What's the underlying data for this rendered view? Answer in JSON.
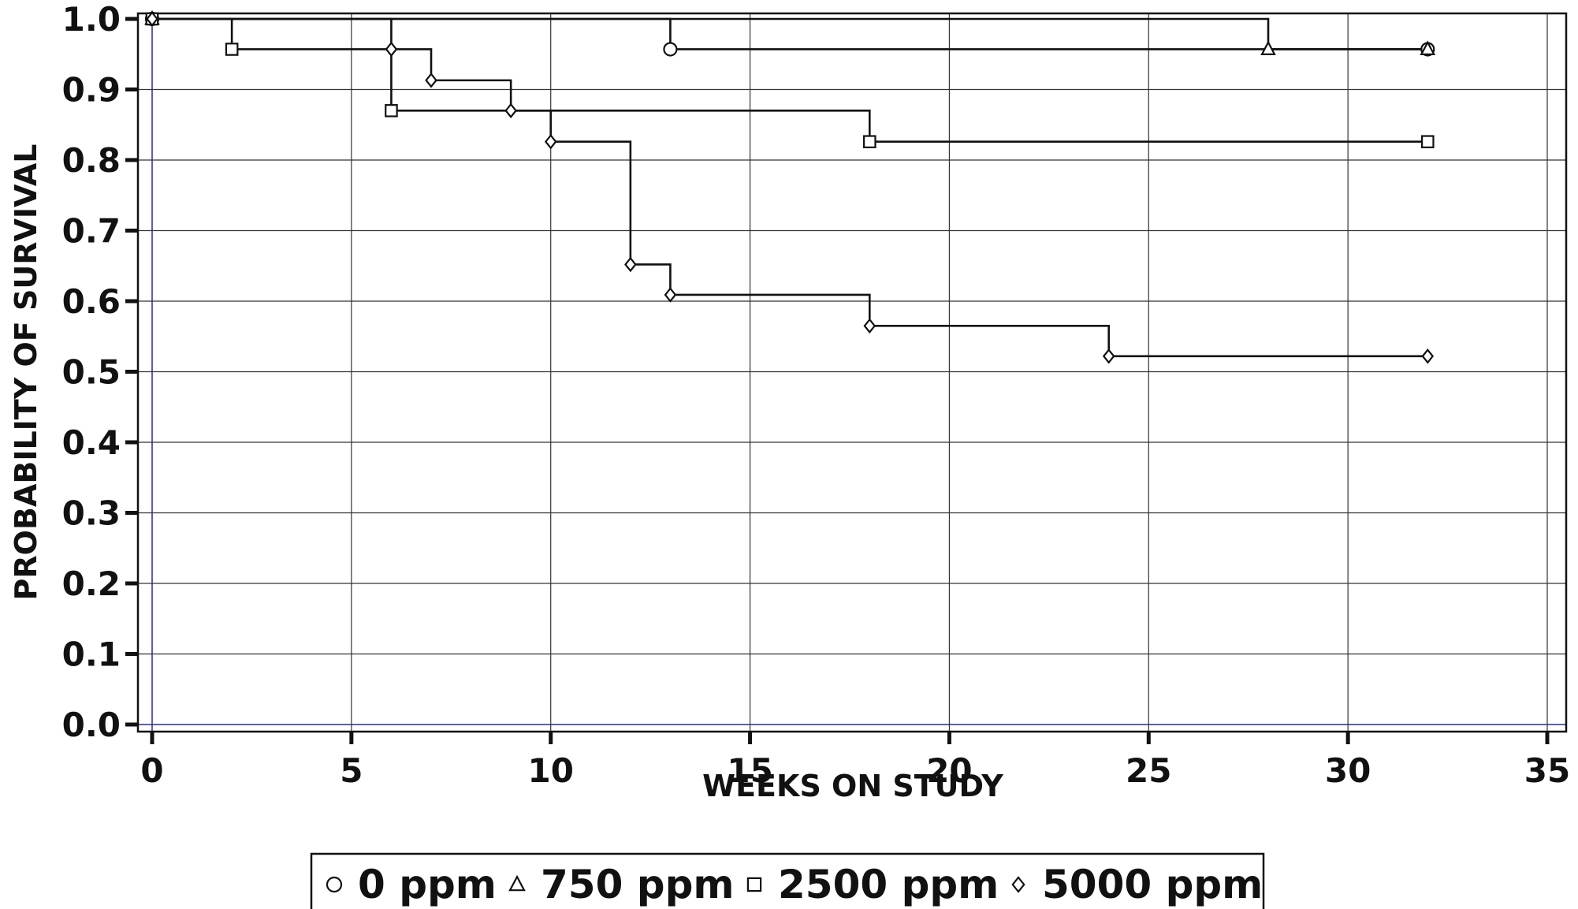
{
  "chart_data": {
    "type": "line",
    "step": true,
    "title": "",
    "xlabel": "WEEKS ON STUDY",
    "ylabel": "PROBABILITY OF SURVIVAL",
    "xlim": [
      0,
      35
    ],
    "ylim": [
      0.0,
      1.0
    ],
    "xticks": [
      0,
      5,
      10,
      15,
      20,
      25,
      30,
      35
    ],
    "yticks": [
      0.0,
      0.1,
      0.2,
      0.3,
      0.4,
      0.5,
      0.6,
      0.7,
      0.8,
      0.9,
      1.0
    ],
    "xtick_labels": [
      "0",
      "5",
      "10",
      "15",
      "20",
      "25",
      "30",
      "35"
    ],
    "ytick_labels": [
      "0.0",
      "0.1",
      "0.2",
      "0.3",
      "0.4",
      "0.5",
      "0.6",
      "0.7",
      "0.8",
      "0.9",
      "1.0"
    ],
    "grid": true,
    "legend_position": "bottom-center",
    "colors": {
      "line": "#111111",
      "grid": "#333333",
      "zero_line": "#2b2b8c",
      "background": "#ffffff"
    },
    "series": [
      {
        "name": "0 ppm",
        "marker": "circle",
        "points": [
          [
            0,
            1.0
          ],
          [
            13,
            0.957
          ],
          [
            32,
            0.957
          ]
        ]
      },
      {
        "name": "750 ppm",
        "marker": "triangle",
        "points": [
          [
            0,
            1.0
          ],
          [
            28,
            0.957
          ],
          [
            32,
            0.957
          ]
        ]
      },
      {
        "name": "2500 ppm",
        "marker": "square",
        "points": [
          [
            0,
            1.0
          ],
          [
            2,
            0.957
          ],
          [
            6,
            0.87
          ],
          [
            18,
            0.826
          ],
          [
            32,
            0.826
          ]
        ]
      },
      {
        "name": "5000 ppm",
        "marker": "diamond",
        "points": [
          [
            0,
            1.0
          ],
          [
            6,
            0.957
          ],
          [
            7,
            0.913
          ],
          [
            9,
            0.87
          ],
          [
            10,
            0.826
          ],
          [
            12,
            0.652
          ],
          [
            13,
            0.609
          ],
          [
            18,
            0.565
          ],
          [
            24,
            0.522
          ],
          [
            32,
            0.522
          ]
        ]
      }
    ]
  }
}
